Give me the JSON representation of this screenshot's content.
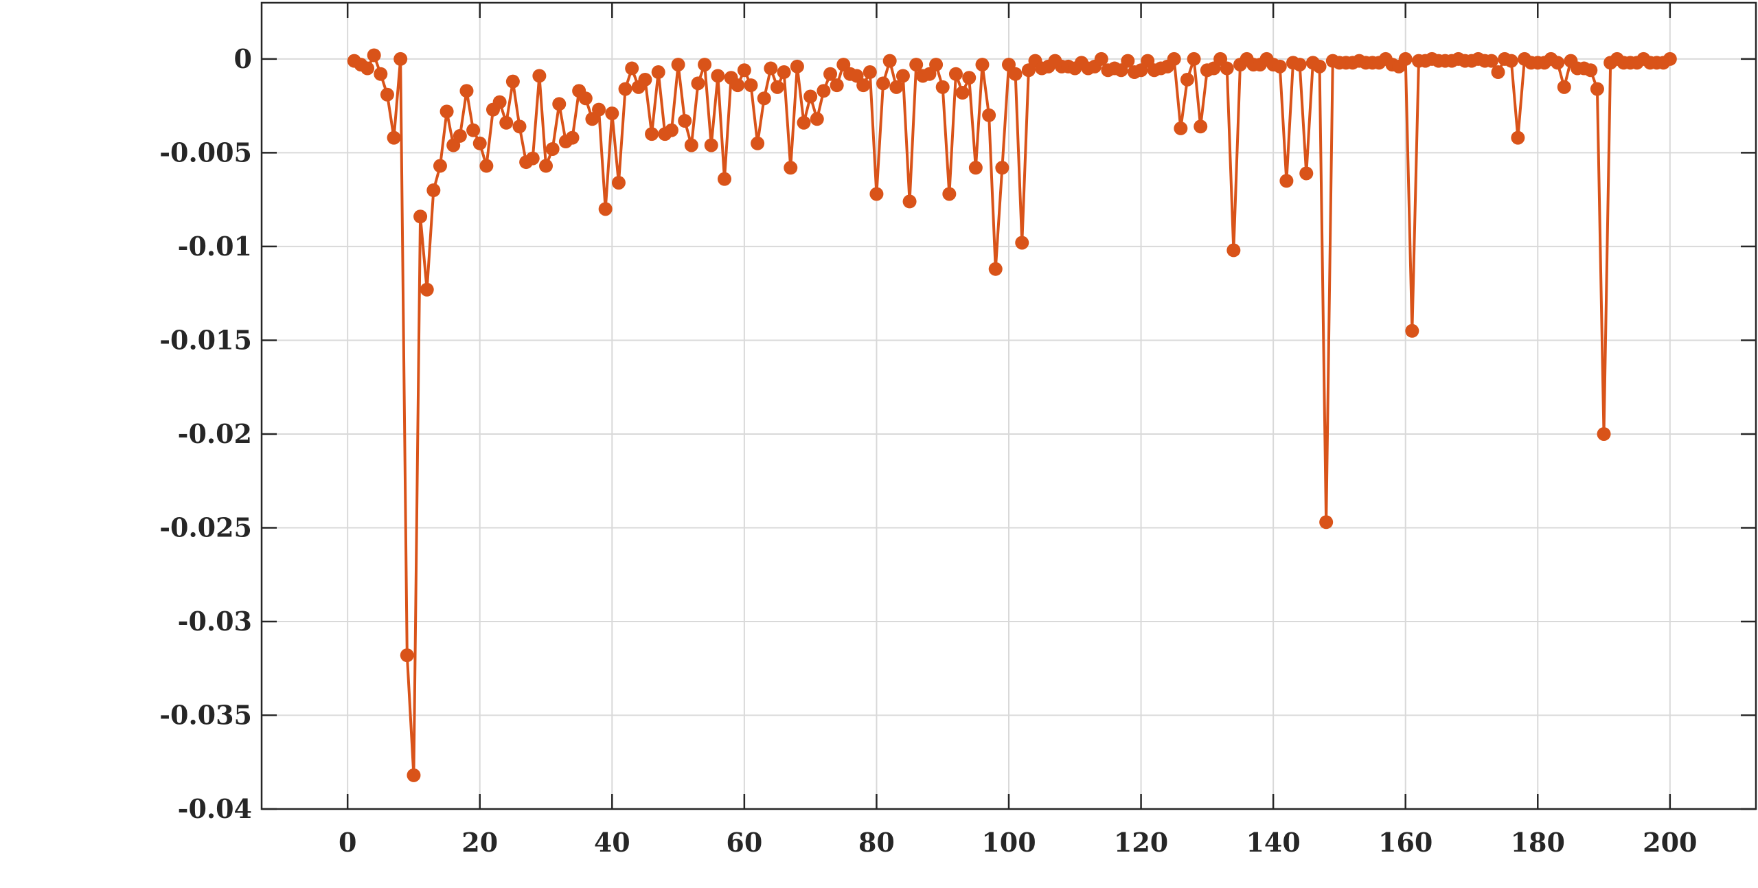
{
  "chart_data": {
    "type": "line",
    "title": "",
    "xlabel": "",
    "ylabel": "",
    "xlim": [
      -13,
      213
    ],
    "ylim": [
      -0.04,
      0.003
    ],
    "x_ticks": [
      0,
      20,
      40,
      60,
      80,
      100,
      120,
      140,
      160,
      180,
      200
    ],
    "x_tick_labels": [
      "0",
      "20",
      "40",
      "60",
      "80",
      "100",
      "120",
      "140",
      "160",
      "180",
      "200"
    ],
    "y_ticks": [
      0,
      -0.005,
      -0.01,
      -0.015,
      -0.02,
      -0.025,
      -0.03,
      -0.035,
      -0.04
    ],
    "y_tick_labels": [
      "0",
      "-0.005",
      "-0.01",
      "-0.015",
      "-0.02",
      "-0.025",
      "-0.03",
      "-0.035",
      "-0.04"
    ],
    "grid": true,
    "legend": "none",
    "color": "#D95319",
    "marker": "circle",
    "series": [
      {
        "x": [
          1,
          2,
          3,
          4,
          5,
          6,
          7,
          8,
          9,
          10,
          11,
          12,
          13,
          14,
          15,
          16,
          17,
          18,
          19,
          20,
          21,
          22,
          23,
          24,
          25,
          26,
          27,
          28,
          29,
          30,
          31,
          32,
          33,
          34,
          35,
          36,
          37,
          38,
          39,
          40,
          41,
          42,
          43,
          44,
          45,
          46,
          47,
          48,
          49,
          50,
          51,
          52,
          53,
          54,
          55,
          56,
          57,
          58,
          59,
          60,
          61,
          62,
          63,
          64,
          65,
          66,
          67,
          68,
          69,
          70,
          71,
          72,
          73,
          74,
          75,
          76,
          77,
          78,
          79,
          80,
          81,
          82,
          83,
          84,
          85,
          86,
          87,
          88,
          89,
          90,
          91,
          92,
          93,
          94,
          95,
          96,
          97,
          98,
          99,
          100,
          101,
          102,
          103,
          104,
          105,
          106,
          107,
          108,
          109,
          110,
          111,
          112,
          113,
          114,
          115,
          116,
          117,
          118,
          119,
          120,
          121,
          122,
          123,
          124,
          125,
          126,
          127,
          128,
          129,
          130,
          131,
          132,
          133,
          134,
          135,
          136,
          137,
          138,
          139,
          140,
          141,
          142,
          143,
          144,
          145,
          146,
          147,
          148,
          149,
          150,
          151,
          152,
          153,
          154,
          155,
          156,
          157,
          158,
          159,
          160,
          161,
          162,
          163,
          164,
          165,
          166,
          167,
          168,
          169,
          170,
          171,
          172,
          173,
          174,
          175,
          176,
          177,
          178,
          179,
          180,
          181,
          182,
          183,
          184,
          185,
          186,
          187,
          188,
          189,
          190,
          191,
          192,
          193,
          194,
          195,
          196,
          197,
          198,
          199,
          200
        ],
        "y": [
          -0.0001,
          -0.0003,
          -0.0005,
          0.0002,
          -0.0008,
          -0.0019,
          -0.0042,
          0.0,
          -0.0318,
          -0.0382,
          -0.0084,
          -0.0123,
          -0.007,
          -0.0057,
          -0.0028,
          -0.0046,
          -0.0041,
          -0.0017,
          -0.0038,
          -0.0045,
          -0.0057,
          -0.0027,
          -0.0023,
          -0.0034,
          -0.0012,
          -0.0036,
          -0.0055,
          -0.0053,
          -0.0009,
          -0.0057,
          -0.0048,
          -0.0024,
          -0.0044,
          -0.0042,
          -0.0017,
          -0.0021,
          -0.0032,
          -0.0027,
          -0.008,
          -0.0029,
          -0.0066,
          -0.0016,
          -0.0005,
          -0.0015,
          -0.0011,
          -0.004,
          -0.0007,
          -0.004,
          -0.0038,
          -0.0003,
          -0.0033,
          -0.0046,
          -0.0013,
          -0.0003,
          -0.0046,
          -0.0009,
          -0.0064,
          -0.001,
          -0.0014,
          -0.0006,
          -0.0014,
          -0.0045,
          -0.0021,
          -0.0005,
          -0.0015,
          -0.0007,
          -0.0058,
          -0.0004,
          -0.0034,
          -0.002,
          -0.0032,
          -0.0017,
          -0.0008,
          -0.0014,
          -0.0003,
          -0.0008,
          -0.0009,
          -0.0014,
          -0.0007,
          -0.0072,
          -0.0013,
          -0.0001,
          -0.0015,
          -0.0009,
          -0.0076,
          -0.0003,
          -0.0009,
          -0.0008,
          -0.0003,
          -0.0015,
          -0.0072,
          -0.0008,
          -0.0018,
          -0.001,
          -0.0058,
          -0.0003,
          -0.003,
          -0.0112,
          -0.0058,
          -0.0003,
          -0.0008,
          -0.0098,
          -0.0006,
          -0.0001,
          -0.0005,
          -0.0004,
          -0.0001,
          -0.0004,
          -0.0004,
          -0.0005,
          -0.0002,
          -0.0005,
          -0.0004,
          0.0,
          -0.0006,
          -0.0005,
          -0.0006,
          -0.0001,
          -0.0007,
          -0.0006,
          -0.0001,
          -0.0006,
          -0.0005,
          -0.0004,
          0.0,
          -0.0037,
          -0.0011,
          0.0,
          -0.0036,
          -0.0006,
          -0.0005,
          0.0,
          -0.0005,
          -0.0102,
          -0.0003,
          0.0,
          -0.0003,
          -0.0003,
          0.0,
          -0.0003,
          -0.0004,
          -0.0065,
          -0.0002,
          -0.0003,
          -0.0061,
          -0.0002,
          -0.0004,
          -0.0247,
          -0.0001,
          -0.0002,
          -0.0002,
          -0.0002,
          -0.0001,
          -0.0002,
          -0.0002,
          -0.0002,
          0.0,
          -0.0003,
          -0.0004,
          0.0,
          -0.0145,
          -0.0001,
          -0.0001,
          0.0,
          -0.0001,
          -0.0001,
          -0.0001,
          0.0,
          -0.0001,
          -0.0001,
          0.0,
          -0.0001,
          -0.0001,
          -0.0007,
          0.0,
          -0.0001,
          -0.0042,
          0.0,
          -0.0002,
          -0.0002,
          -0.0002,
          0.0,
          -0.0002,
          -0.0015,
          -0.0001,
          -0.0005,
          -0.0005,
          -0.0006,
          -0.0016,
          -0.02,
          -0.0002,
          0.0,
          -0.0002,
          -0.0002,
          -0.0002,
          0.0,
          -0.0002,
          -0.0002,
          -0.0002,
          0.0
        ]
      }
    ]
  }
}
